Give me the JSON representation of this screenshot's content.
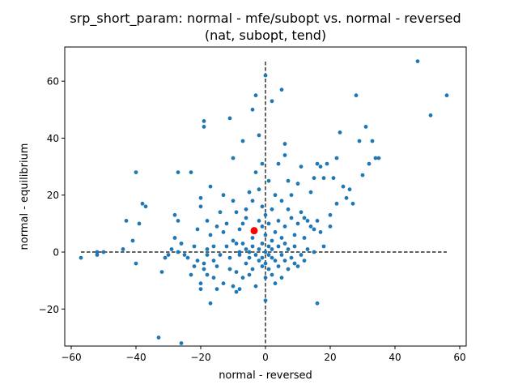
{
  "chart_data": {
    "type": "scatter",
    "title": "srp_short_param: normal - mfe/subopt vs. normal - reversed",
    "subtitle": "(nat, subopt, tend)",
    "xlabel": "normal - reversed",
    "ylabel": "normal - equilibrium",
    "xlim": [
      -62,
      62
    ],
    "ylim": [
      -33,
      72
    ],
    "xticks": [
      -60,
      -40,
      -20,
      0,
      20,
      40,
      60
    ],
    "yticks": [
      -20,
      0,
      20,
      40,
      60
    ],
    "xtick_labels": [
      "−60",
      "−40",
      "−20",
      "0",
      "20",
      "40",
      "60"
    ],
    "ytick_labels": [
      "−20",
      "0",
      "20",
      "40",
      "60"
    ],
    "grid": false,
    "point_color": "#1f77b4",
    "highlight_color": "#ff0000",
    "reference_lines": {
      "horizontal": {
        "y": 0,
        "x_from": -57,
        "x_to": 56
      },
      "vertical": {
        "x": 0,
        "y_from": -32,
        "y_to": 67
      }
    },
    "highlight": {
      "x": -3.5,
      "y": 7.5
    },
    "points": [
      [
        -57,
        -2
      ],
      [
        -52,
        0
      ],
      [
        -52,
        -1
      ],
      [
        -50,
        0
      ],
      [
        -44,
        1
      ],
      [
        -43,
        11
      ],
      [
        -41,
        4
      ],
      [
        -40,
        -4
      ],
      [
        -40,
        28
      ],
      [
        -39,
        10
      ],
      [
        -38,
        17
      ],
      [
        -37,
        16
      ],
      [
        -33,
        -30
      ],
      [
        -32,
        -7
      ],
      [
        -31,
        -2
      ],
      [
        -30,
        -1
      ],
      [
        -29,
        1
      ],
      [
        -28,
        5
      ],
      [
        -28,
        13
      ],
      [
        -27,
        28
      ],
      [
        -27,
        11
      ],
      [
        -27,
        0
      ],
      [
        -26,
        -32
      ],
      [
        -26,
        3
      ],
      [
        -25,
        -1
      ],
      [
        -24,
        -2
      ],
      [
        -23,
        28
      ],
      [
        -23,
        -8
      ],
      [
        -22,
        -5
      ],
      [
        -22,
        2
      ],
      [
        -21,
        8
      ],
      [
        -21,
        -3
      ],
      [
        -20,
        -11
      ],
      [
        -20,
        -13
      ],
      [
        -20,
        16
      ],
      [
        -20,
        19
      ],
      [
        -19,
        46
      ],
      [
        -19,
        44
      ],
      [
        -19,
        -4
      ],
      [
        -19,
        -6
      ],
      [
        -18,
        -1
      ],
      [
        -18,
        1
      ],
      [
        -18,
        -8
      ],
      [
        -18,
        11
      ],
      [
        -17,
        -18
      ],
      [
        -17,
        23
      ],
      [
        -17,
        6
      ],
      [
        -16,
        2
      ],
      [
        -16,
        -3
      ],
      [
        -16,
        -9
      ],
      [
        -15,
        9
      ],
      [
        -15,
        -13
      ],
      [
        -15,
        -5
      ],
      [
        -14,
        -1
      ],
      [
        -14,
        14
      ],
      [
        -13,
        20
      ],
      [
        -13,
        7
      ],
      [
        -13,
        -11
      ],
      [
        -12,
        10
      ],
      [
        -12,
        2
      ],
      [
        -11,
        47
      ],
      [
        -11,
        -6
      ],
      [
        -11,
        -2
      ],
      [
        -10,
        -12
      ],
      [
        -10,
        4
      ],
      [
        -10,
        18
      ],
      [
        -10,
        33
      ],
      [
        -9,
        14
      ],
      [
        -9,
        -7
      ],
      [
        -9,
        -14
      ],
      [
        -9,
        3
      ],
      [
        -8,
        0
      ],
      [
        -8,
        -13
      ],
      [
        -8,
        8
      ],
      [
        -8,
        -1
      ],
      [
        -7,
        39
      ],
      [
        -7,
        10
      ],
      [
        -7,
        -9
      ],
      [
        -7,
        3
      ],
      [
        -6,
        -4
      ],
      [
        -6,
        15
      ],
      [
        -6,
        1
      ],
      [
        -6,
        12
      ],
      [
        -5,
        -2
      ],
      [
        -5,
        21
      ],
      [
        -5,
        -8
      ],
      [
        -5,
        0
      ],
      [
        -4,
        5
      ],
      [
        -4,
        -6
      ],
      [
        -4,
        18
      ],
      [
        -4,
        50
      ],
      [
        -4,
        2
      ],
      [
        -3,
        55
      ],
      [
        -3,
        -12
      ],
      [
        -3,
        -1
      ],
      [
        -3,
        28
      ],
      [
        -2,
        11
      ],
      [
        -2,
        22
      ],
      [
        -2,
        -3
      ],
      [
        -2,
        1
      ],
      [
        -2,
        41
      ],
      [
        -1,
        -5
      ],
      [
        -1,
        9
      ],
      [
        -1,
        -2
      ],
      [
        -1,
        31
      ],
      [
        -1,
        16
      ],
      [
        -1,
        3
      ],
      [
        0,
        -17
      ],
      [
        0,
        62
      ],
      [
        0,
        -9
      ],
      [
        0,
        0
      ],
      [
        0,
        6
      ],
      [
        0,
        -4
      ],
      [
        0,
        13
      ],
      [
        1,
        2
      ],
      [
        1,
        -1
      ],
      [
        1,
        25
      ],
      [
        1,
        -6
      ],
      [
        1,
        10
      ],
      [
        2,
        53
      ],
      [
        2,
        4
      ],
      [
        2,
        -2
      ],
      [
        2,
        15
      ],
      [
        2,
        -8
      ],
      [
        2,
        1
      ],
      [
        3,
        7
      ],
      [
        3,
        -3
      ],
      [
        3,
        20
      ],
      [
        3,
        -11
      ],
      [
        4,
        2
      ],
      [
        4,
        31
      ],
      [
        4,
        -5
      ],
      [
        4,
        11
      ],
      [
        5,
        57
      ],
      [
        5,
        -1
      ],
      [
        5,
        5
      ],
      [
        5,
        -9
      ],
      [
        5,
        18
      ],
      [
        6,
        34
      ],
      [
        6,
        3
      ],
      [
        6,
        -3
      ],
      [
        6,
        38
      ],
      [
        6,
        9
      ],
      [
        7,
        -6
      ],
      [
        7,
        25
      ],
      [
        7,
        1
      ],
      [
        7,
        15
      ],
      [
        8,
        -2
      ],
      [
        8,
        20
      ],
      [
        8,
        12
      ],
      [
        9,
        -4
      ],
      [
        9,
        6
      ],
      [
        9,
        2
      ],
      [
        10,
        24
      ],
      [
        10,
        -5
      ],
      [
        10,
        10
      ],
      [
        11,
        -1
      ],
      [
        11,
        30
      ],
      [
        11,
        14
      ],
      [
        12,
        5
      ],
      [
        12,
        -3
      ],
      [
        12,
        12
      ],
      [
        13,
        11
      ],
      [
        13,
        1
      ],
      [
        14,
        21
      ],
      [
        14,
        9
      ],
      [
        15,
        8
      ],
      [
        15,
        0
      ],
      [
        15,
        26
      ],
      [
        16,
        31
      ],
      [
        16,
        11
      ],
      [
        16,
        -18
      ],
      [
        17,
        30
      ],
      [
        17,
        7
      ],
      [
        18,
        26
      ],
      [
        18,
        2
      ],
      [
        19,
        31
      ],
      [
        20,
        13
      ],
      [
        20,
        9
      ],
      [
        21,
        26
      ],
      [
        22,
        33
      ],
      [
        22,
        17
      ],
      [
        23,
        42
      ],
      [
        24,
        23
      ],
      [
        25,
        19
      ],
      [
        26,
        22
      ],
      [
        27,
        17
      ],
      [
        28,
        55
      ],
      [
        29,
        39
      ],
      [
        30,
        27
      ],
      [
        31,
        44
      ],
      [
        32,
        31
      ],
      [
        33,
        39
      ],
      [
        34,
        33
      ],
      [
        35,
        33
      ],
      [
        47,
        67
      ],
      [
        51,
        48
      ],
      [
        56,
        55
      ]
    ]
  }
}
